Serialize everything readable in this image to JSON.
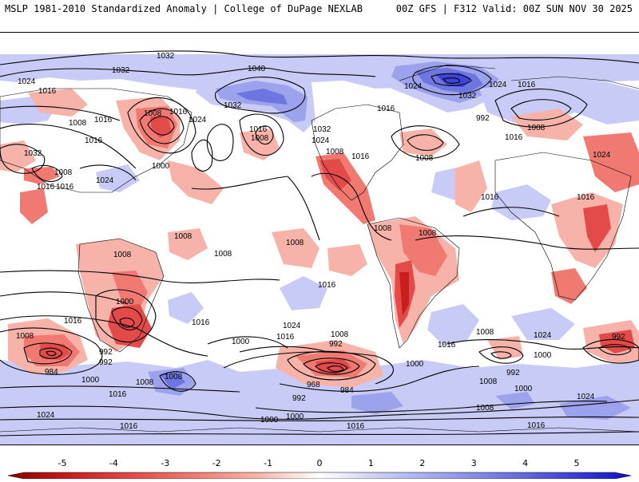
{
  "header": {
    "left_title": "MSLP 1981-2010 Standardized Anomaly | College of DuPage NEXLAB",
    "right_title": "00Z GFS | F312 Valid: 00Z SUN NOV 30 2025"
  },
  "colorbar": {
    "ticks": [
      "-5",
      "-4",
      "-3",
      "-2",
      "-1",
      "0",
      "1",
      "2",
      "3",
      "4",
      "5"
    ],
    "colors": [
      "#8b0000",
      "#c81e1e",
      "#e34b4b",
      "#f07a72",
      "#f7b3aa",
      "#ffffff",
      "#c8cbf5",
      "#9da2ec",
      "#6f75e0",
      "#3f44d6",
      "#0a10c8"
    ]
  },
  "contour_labels": [
    {
      "text": "1032"
    },
    {
      "text": "1032"
    },
    {
      "text": "1024"
    },
    {
      "text": "1016"
    },
    {
      "text": "1040"
    },
    {
      "text": "1032"
    },
    {
      "text": "1024"
    },
    {
      "text": "1032"
    },
    {
      "text": "1024"
    },
    {
      "text": "1016"
    },
    {
      "text": "1016"
    },
    {
      "text": "1008"
    },
    {
      "text": "1016"
    },
    {
      "text": "1008"
    },
    {
      "text": "1024"
    },
    {
      "text": "1016"
    },
    {
      "text": "1008"
    },
    {
      "text": "992"
    },
    {
      "text": "1008"
    },
    {
      "text": "1016"
    },
    {
      "text": "1016"
    },
    {
      "text": "1032"
    },
    {
      "text": "1024"
    },
    {
      "text": "1016"
    },
    {
      "text": "1032"
    },
    {
      "text": "1000"
    },
    {
      "text": "1016"
    },
    {
      "text": "1008"
    },
    {
      "text": "1024"
    },
    {
      "text": "1008"
    },
    {
      "text": "1016"
    },
    {
      "text": "1008"
    },
    {
      "text": "1008"
    },
    {
      "text": "1008"
    },
    {
      "text": "1024"
    },
    {
      "text": "1016"
    },
    {
      "text": "1008"
    },
    {
      "text": "1008"
    },
    {
      "text": "1008"
    },
    {
      "text": "1008"
    },
    {
      "text": "1016"
    },
    {
      "text": "1016"
    },
    {
      "text": "1016"
    },
    {
      "text": "1000"
    },
    {
      "text": "1016"
    },
    {
      "text": "1016"
    },
    {
      "text": "1024"
    },
    {
      "text": "1016"
    },
    {
      "text": "1024"
    },
    {
      "text": "1008"
    },
    {
      "text": "1008"
    },
    {
      "text": "992"
    },
    {
      "text": "992"
    },
    {
      "text": "984"
    },
    {
      "text": "1000"
    },
    {
      "text": "1000"
    },
    {
      "text": "1008"
    },
    {
      "text": "1016"
    },
    {
      "text": "1008"
    },
    {
      "text": "1024"
    },
    {
      "text": "992"
    },
    {
      "text": "1000"
    },
    {
      "text": "992"
    },
    {
      "text": "1008"
    },
    {
      "text": "1000"
    },
    {
      "text": "1000"
    },
    {
      "text": "992"
    },
    {
      "text": "968"
    },
    {
      "text": "984"
    },
    {
      "text": "992"
    },
    {
      "text": "1016"
    },
    {
      "text": "1008"
    },
    {
      "text": "1000"
    },
    {
      "text": "1016"
    },
    {
      "text": "1000"
    },
    {
      "text": "1024"
    },
    {
      "text": "1016"
    },
    {
      "text": "1008"
    },
    {
      "text": "1016"
    }
  ]
}
